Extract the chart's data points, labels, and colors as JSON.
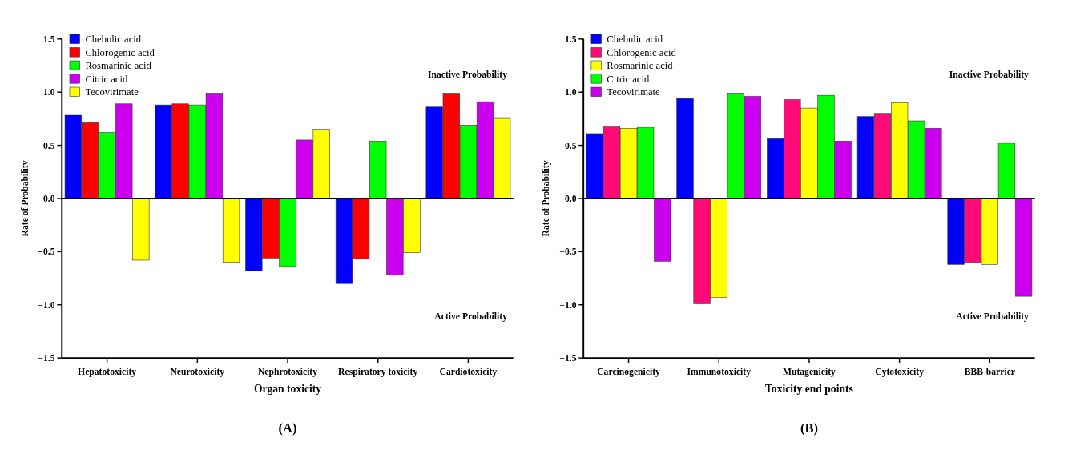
{
  "chart_data": [
    {
      "type": "bar",
      "xlabel": "Organ toxicity",
      "ylabel": "Rate of Probability",
      "categories": [
        "Hepatotoxicity",
        "Neurotoxicity",
        "Nephrotoxicity",
        "Respiratory toxicity",
        "Cardiotoxicity"
      ],
      "series": [
        {
          "name": "Chebulic acid",
          "color": "#0000ff",
          "values": [
            0.79,
            0.88,
            -0.68,
            -0.8,
            0.86
          ]
        },
        {
          "name": "Chlorogenic acid",
          "color": "#ff0000",
          "values": [
            0.72,
            0.89,
            -0.56,
            -0.57,
            0.99
          ]
        },
        {
          "name": "Rosmarinic acid",
          "color": "#00ff00",
          "values": [
            0.62,
            0.88,
            -0.64,
            0.54,
            0.69
          ]
        },
        {
          "name": "Citric acid",
          "color": "#cc00ee",
          "values": [
            0.89,
            0.99,
            0.55,
            -0.72,
            0.91
          ]
        },
        {
          "name": "Tecovirimate",
          "color": "#ffff00",
          "values": [
            -0.58,
            -0.6,
            0.65,
            -0.51,
            0.76
          ]
        }
      ],
      "ylim": [
        -1.5,
        1.5
      ],
      "yticks": [
        {
          "value": -1.5,
          "label": "−1.5"
        },
        {
          "value": -1,
          "label": "−1.0"
        },
        {
          "value": -0.5,
          "label": "−0.5"
        },
        {
          "value": 0,
          "label": "0.0"
        },
        {
          "value": 0.5,
          "label": "0.5"
        },
        {
          "value": 1,
          "label": "1.0"
        },
        {
          "value": 1.5,
          "label": "1.5"
        }
      ],
      "annotations": [
        "Inactive Probability",
        "Active Probability",
        "(A)"
      ],
      "legend": "top left"
    },
    {
      "type": "bar",
      "xlabel": "Toxicity end points",
      "ylabel": "Rate of Probability",
      "categories": [
        "Carcinogenicity",
        "Immunotoxicity",
        "Mutagenicity",
        "Cytotoxicity",
        "BBB-barrier"
      ],
      "series": [
        {
          "name": "Chebulic acid",
          "color": "#0000ff",
          "values": [
            0.61,
            0.94,
            0.57,
            0.77,
            -0.62
          ]
        },
        {
          "name": "Chlorogenic acid",
          "color": "#ff0a78",
          "values": [
            0.68,
            -0.99,
            0.93,
            0.8,
            -0.6
          ]
        },
        {
          "name": "Rosmarinic acid",
          "color": "#ffff00",
          "values": [
            0.66,
            -0.93,
            0.85,
            0.9,
            -0.62
          ]
        },
        {
          "name": "Citric acid",
          "color": "#00ff00",
          "values": [
            0.67,
            0.99,
            0.97,
            0.73,
            0.52
          ]
        },
        {
          "name": "Tecovirimate",
          "color": "#cc00ee",
          "values": [
            -0.59,
            0.96,
            0.54,
            0.66,
            -0.92
          ]
        }
      ],
      "ylim": [
        -1.5,
        1.5
      ],
      "yticks": [
        {
          "value": -1.5,
          "label": "−1.5"
        },
        {
          "value": -1,
          "label": "−1.0"
        },
        {
          "value": -0.5,
          "label": "−0.5"
        },
        {
          "value": 0,
          "label": "0.0"
        },
        {
          "value": 0.5,
          "label": "0.5"
        },
        {
          "value": 1,
          "label": "1.0"
        },
        {
          "value": 1.5,
          "label": "1.5"
        }
      ],
      "annotations": [
        "Inactive Probability",
        "Active Probability",
        "(B)"
      ],
      "legend": "top left"
    }
  ]
}
